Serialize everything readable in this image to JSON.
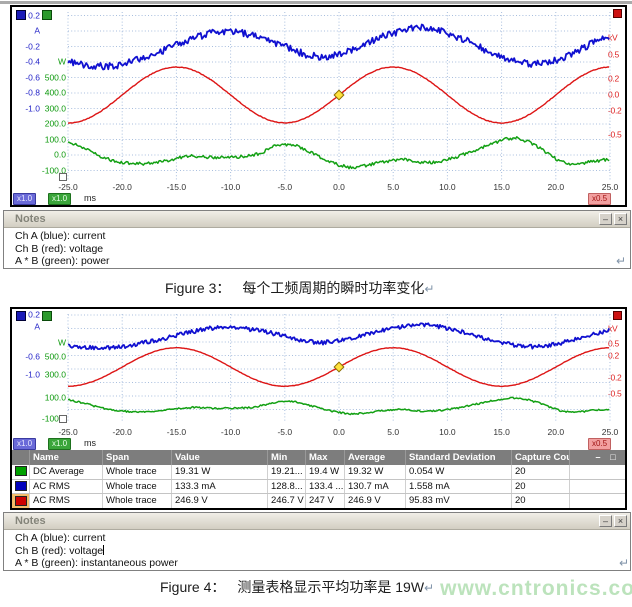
{
  "colors": {
    "blue_trace": "#1010d0",
    "red_trace": "#dd1515",
    "green_trace": "#13a013",
    "grid": "#a8bede",
    "selected_swatch_bg": "#f2bc6a"
  },
  "chart_data": [
    {
      "type": "line",
      "title": "",
      "x_axis": {
        "unit": "ms",
        "range_ms": [
          -25,
          25
        ],
        "ticks": [
          "-25.0",
          "-20.0",
          "-15.0",
          "-10.0",
          "-5.0",
          "0.0",
          "5.0",
          "10.0",
          "15.0",
          "20.0",
          "25.0"
        ]
      },
      "y_axes": {
        "blue": {
          "unit": "A",
          "ticks": [
            "0.2",
            "-0.2",
            "-0.4",
            "-0.6",
            "-0.8",
            "-1.0"
          ]
        },
        "green": {
          "unit": "W",
          "ticks": [
            "500.0",
            "400.0",
            "300.0",
            "200.0",
            "100.0",
            "0.0",
            "-100.0"
          ]
        },
        "red": {
          "unit": "kV",
          "ticks": [
            "0.5",
            "0.2",
            "0.0",
            "-0.2",
            "-0.5"
          ]
        }
      },
      "scale_badges": {
        "blue": "x1.0",
        "green": "x1.0",
        "time_unit": "ms",
        "red": "x0.5"
      },
      "marker": {
        "t_ms": 0,
        "on_series": "voltage"
      },
      "series": [
        {
          "name": "current",
          "axis": "blue",
          "unit": "A",
          "noise": 0.045,
          "points": [
            [
              -25,
              -0.4
            ],
            [
              -23,
              -0.45
            ],
            [
              -21.5,
              -0.46
            ],
            [
              -20,
              -0.43
            ],
            [
              -18,
              -0.34
            ],
            [
              -16,
              -0.24
            ],
            [
              -14,
              -0.12
            ],
            [
              -12,
              -0.03
            ],
            [
              -10.5,
              0.0
            ],
            [
              -9,
              -0.02
            ],
            [
              -7,
              -0.09
            ],
            [
              -5,
              -0.2
            ],
            [
              -3,
              -0.31
            ],
            [
              -1.5,
              -0.34
            ],
            [
              0,
              -0.3
            ],
            [
              1.5,
              -0.22
            ],
            [
              3,
              -0.13
            ],
            [
              4.5,
              -0.05
            ],
            [
              6,
              0.02
            ],
            [
              7.5,
              0.05
            ],
            [
              9,
              0.02
            ],
            [
              10.5,
              -0.05
            ],
            [
              12,
              -0.14
            ],
            [
              13.5,
              -0.25
            ],
            [
              15,
              -0.34
            ],
            [
              16.5,
              -0.41
            ],
            [
              18,
              -0.43
            ],
            [
              19.5,
              -0.4
            ],
            [
              21,
              -0.32
            ],
            [
              22.5,
              -0.22
            ],
            [
              24,
              -0.12
            ],
            [
              25,
              -0.07
            ]
          ]
        },
        {
          "name": "voltage",
          "axis": "red",
          "unit": "kV",
          "noise": 0.004,
          "fn": {
            "shape": "cos",
            "amplitude": 0.35,
            "period_ms": 20,
            "peak_at_ms": 5
          }
        },
        {
          "name": "power",
          "axis": "green",
          "unit": "W",
          "noise": 10,
          "points": [
            [
              -25,
              85
            ],
            [
              -23.5,
              45
            ],
            [
              -22,
              -10
            ],
            [
              -20.5,
              -45
            ],
            [
              -19,
              -57
            ],
            [
              -17.5,
              -55
            ],
            [
              -16,
              -38
            ],
            [
              -14.5,
              -15
            ],
            [
              -13.5,
              -5
            ],
            [
              -12.5,
              -12
            ],
            [
              -11,
              -16
            ],
            [
              -9.5,
              -14
            ],
            [
              -8,
              -5
            ],
            [
              -7,
              20
            ],
            [
              -6,
              55
            ],
            [
              -5,
              70
            ],
            [
              -4,
              60
            ],
            [
              -3,
              30
            ],
            [
              -2,
              -5
            ],
            [
              -1,
              -40
            ],
            [
              0,
              -65
            ],
            [
              1,
              -80
            ],
            [
              2,
              -75
            ],
            [
              3,
              -60
            ],
            [
              4,
              -45
            ],
            [
              5,
              -32
            ],
            [
              6,
              -30
            ],
            [
              7,
              -42
            ],
            [
              8,
              -50
            ],
            [
              9,
              -45
            ],
            [
              10,
              -30
            ],
            [
              11,
              -10
            ],
            [
              12.5,
              30
            ],
            [
              14,
              70
            ],
            [
              15.5,
              105
            ],
            [
              16.5,
              108
            ],
            [
              17.5,
              85
            ],
            [
              18.5,
              45
            ],
            [
              19.5,
              -5
            ],
            [
              20.5,
              -45
            ],
            [
              21.5,
              -60
            ],
            [
              22.5,
              -52
            ],
            [
              23.5,
              -40
            ],
            [
              24.5,
              -32
            ],
            [
              25,
              -30
            ]
          ]
        }
      ]
    },
    {
      "type": "line",
      "title": "",
      "x_axis": {
        "unit": "ms",
        "range_ms": [
          -25,
          25
        ],
        "ticks": [
          "-25.0",
          "-20.0",
          "-15.0",
          "-10.0",
          "-5.0",
          "0.0",
          "5.0",
          "10.0",
          "15.0",
          "20.0",
          "25.0"
        ]
      },
      "y_axes": {
        "blue": {
          "unit": "A",
          "ticks": [
            "0.2",
            "-0.6",
            "-1.0"
          ]
        },
        "green": {
          "unit": "W",
          "ticks": [
            "500.0",
            "300.0",
            "100.0",
            "-100.0"
          ]
        },
        "red": {
          "unit": "kV",
          "ticks": [
            "0.5",
            "0.2",
            "-0.2",
            "-0.5"
          ]
        }
      },
      "scale_badges": {
        "blue": "x1.0",
        "green": "x1.0",
        "time_unit": "ms",
        "red": "x0.5"
      },
      "marker": {
        "t_ms": 0,
        "on_series": "voltage"
      },
      "series": [
        {
          "name": "current",
          "axis": "blue",
          "unit": "A",
          "noise": 0.045,
          "points": [
            [
              -25,
              -0.4
            ],
            [
              -23,
              -0.45
            ],
            [
              -21.5,
              -0.46
            ],
            [
              -20,
              -0.43
            ],
            [
              -18,
              -0.34
            ],
            [
              -16,
              -0.24
            ],
            [
              -14,
              -0.12
            ],
            [
              -12,
              -0.03
            ],
            [
              -10.5,
              0.0
            ],
            [
              -9,
              -0.02
            ],
            [
              -7,
              -0.09
            ],
            [
              -5,
              -0.2
            ],
            [
              -3,
              -0.31
            ],
            [
              -1.5,
              -0.34
            ],
            [
              0,
              -0.3
            ],
            [
              1.5,
              -0.22
            ],
            [
              3,
              -0.13
            ],
            [
              4.5,
              -0.05
            ],
            [
              6,
              0.02
            ],
            [
              7.5,
              0.05
            ],
            [
              9,
              0.02
            ],
            [
              10.5,
              -0.05
            ],
            [
              12,
              -0.14
            ],
            [
              13.5,
              -0.25
            ],
            [
              15,
              -0.34
            ],
            [
              16.5,
              -0.41
            ],
            [
              18,
              -0.43
            ],
            [
              19.5,
              -0.4
            ],
            [
              21,
              -0.32
            ],
            [
              22.5,
              -0.22
            ],
            [
              24,
              -0.12
            ],
            [
              25,
              -0.07
            ]
          ]
        },
        {
          "name": "voltage",
          "axis": "red",
          "unit": "kV",
          "noise": 0.004,
          "fn": {
            "shape": "cos",
            "amplitude": 0.35,
            "period_ms": 20,
            "peak_at_ms": 5
          }
        },
        {
          "name": "power",
          "axis": "green",
          "unit": "W",
          "noise": 10,
          "points": [
            [
              -25,
              85
            ],
            [
              -23.5,
              45
            ],
            [
              -22,
              -10
            ],
            [
              -20.5,
              -45
            ],
            [
              -19,
              -57
            ],
            [
              -17.5,
              -55
            ],
            [
              -16,
              -38
            ],
            [
              -14.5,
              -15
            ],
            [
              -13.5,
              -5
            ],
            [
              -12.5,
              -12
            ],
            [
              -11,
              -16
            ],
            [
              -9.5,
              -14
            ],
            [
              -8,
              -5
            ],
            [
              -7,
              20
            ],
            [
              -6,
              55
            ],
            [
              -5,
              70
            ],
            [
              -4,
              60
            ],
            [
              -3,
              30
            ],
            [
              -2,
              -5
            ],
            [
              -1,
              -40
            ],
            [
              0,
              -65
            ],
            [
              1,
              -80
            ],
            [
              2,
              -75
            ],
            [
              3,
              -60
            ],
            [
              4,
              -45
            ],
            [
              5,
              -32
            ],
            [
              6,
              -30
            ],
            [
              7,
              -42
            ],
            [
              8,
              -50
            ],
            [
              9,
              -45
            ],
            [
              10,
              -30
            ],
            [
              11,
              -10
            ],
            [
              12.5,
              30
            ],
            [
              14,
              70
            ],
            [
              15.5,
              105
            ],
            [
              16.5,
              108
            ],
            [
              17.5,
              85
            ],
            [
              18.5,
              45
            ],
            [
              19.5,
              -5
            ],
            [
              20.5,
              -45
            ],
            [
              21.5,
              -60
            ],
            [
              22.5,
              -52
            ],
            [
              23.5,
              -40
            ],
            [
              24.5,
              -32
            ],
            [
              25,
              -30
            ]
          ]
        }
      ]
    }
  ],
  "measure_table": {
    "headers": [
      "Name",
      "Span",
      "Value",
      "Min",
      "Max",
      "Average",
      "Standard Deviation",
      "Capture Count"
    ],
    "rows": [
      {
        "color": "#00a000",
        "selected": false,
        "cells": [
          "DC Average",
          "Whole trace",
          "19.31 W",
          "19.21...",
          "19.4 W",
          "19.32 W",
          "0.054 W",
          "20"
        ]
      },
      {
        "color": "#0000bb",
        "selected": false,
        "cells": [
          "AC RMS",
          "Whole trace",
          "133.3 mA",
          "128.8...",
          "133.4 ...",
          "130.7 mA",
          "1.558 mA",
          "20"
        ]
      },
      {
        "color": "#cc0000",
        "selected": true,
        "cells": [
          "AC RMS",
          "Whole trace",
          "246.9 V",
          "246.7 V",
          "247 V",
          "246.9 V",
          "95.83 mV",
          "20"
        ]
      }
    ],
    "window_buttons": [
      "–",
      "□"
    ]
  },
  "notes_panel_1": {
    "title": "Notes",
    "buttons": [
      "–",
      "×"
    ],
    "lines": [
      "Ch A (blue): current",
      "Ch B (red): voltage",
      "A * B (green): power"
    ]
  },
  "notes_panel_2": {
    "title": "Notes",
    "buttons": [
      "–",
      "×"
    ],
    "caret_line": 1,
    "lines": [
      "Ch A (blue): current",
      "Ch B (red): voltage",
      "A * B (green): instantaneous power"
    ]
  },
  "caption_fig3": {
    "label": "Figure 3：",
    "text": "每个工频周期的瞬时功率变化",
    "return_mark": "↵"
  },
  "caption_fig4": {
    "label": "Figure 4：",
    "text": "测量表格显示平均功率是 19W",
    "return_mark": "↵",
    "watermark": "www.cntronics.com"
  }
}
